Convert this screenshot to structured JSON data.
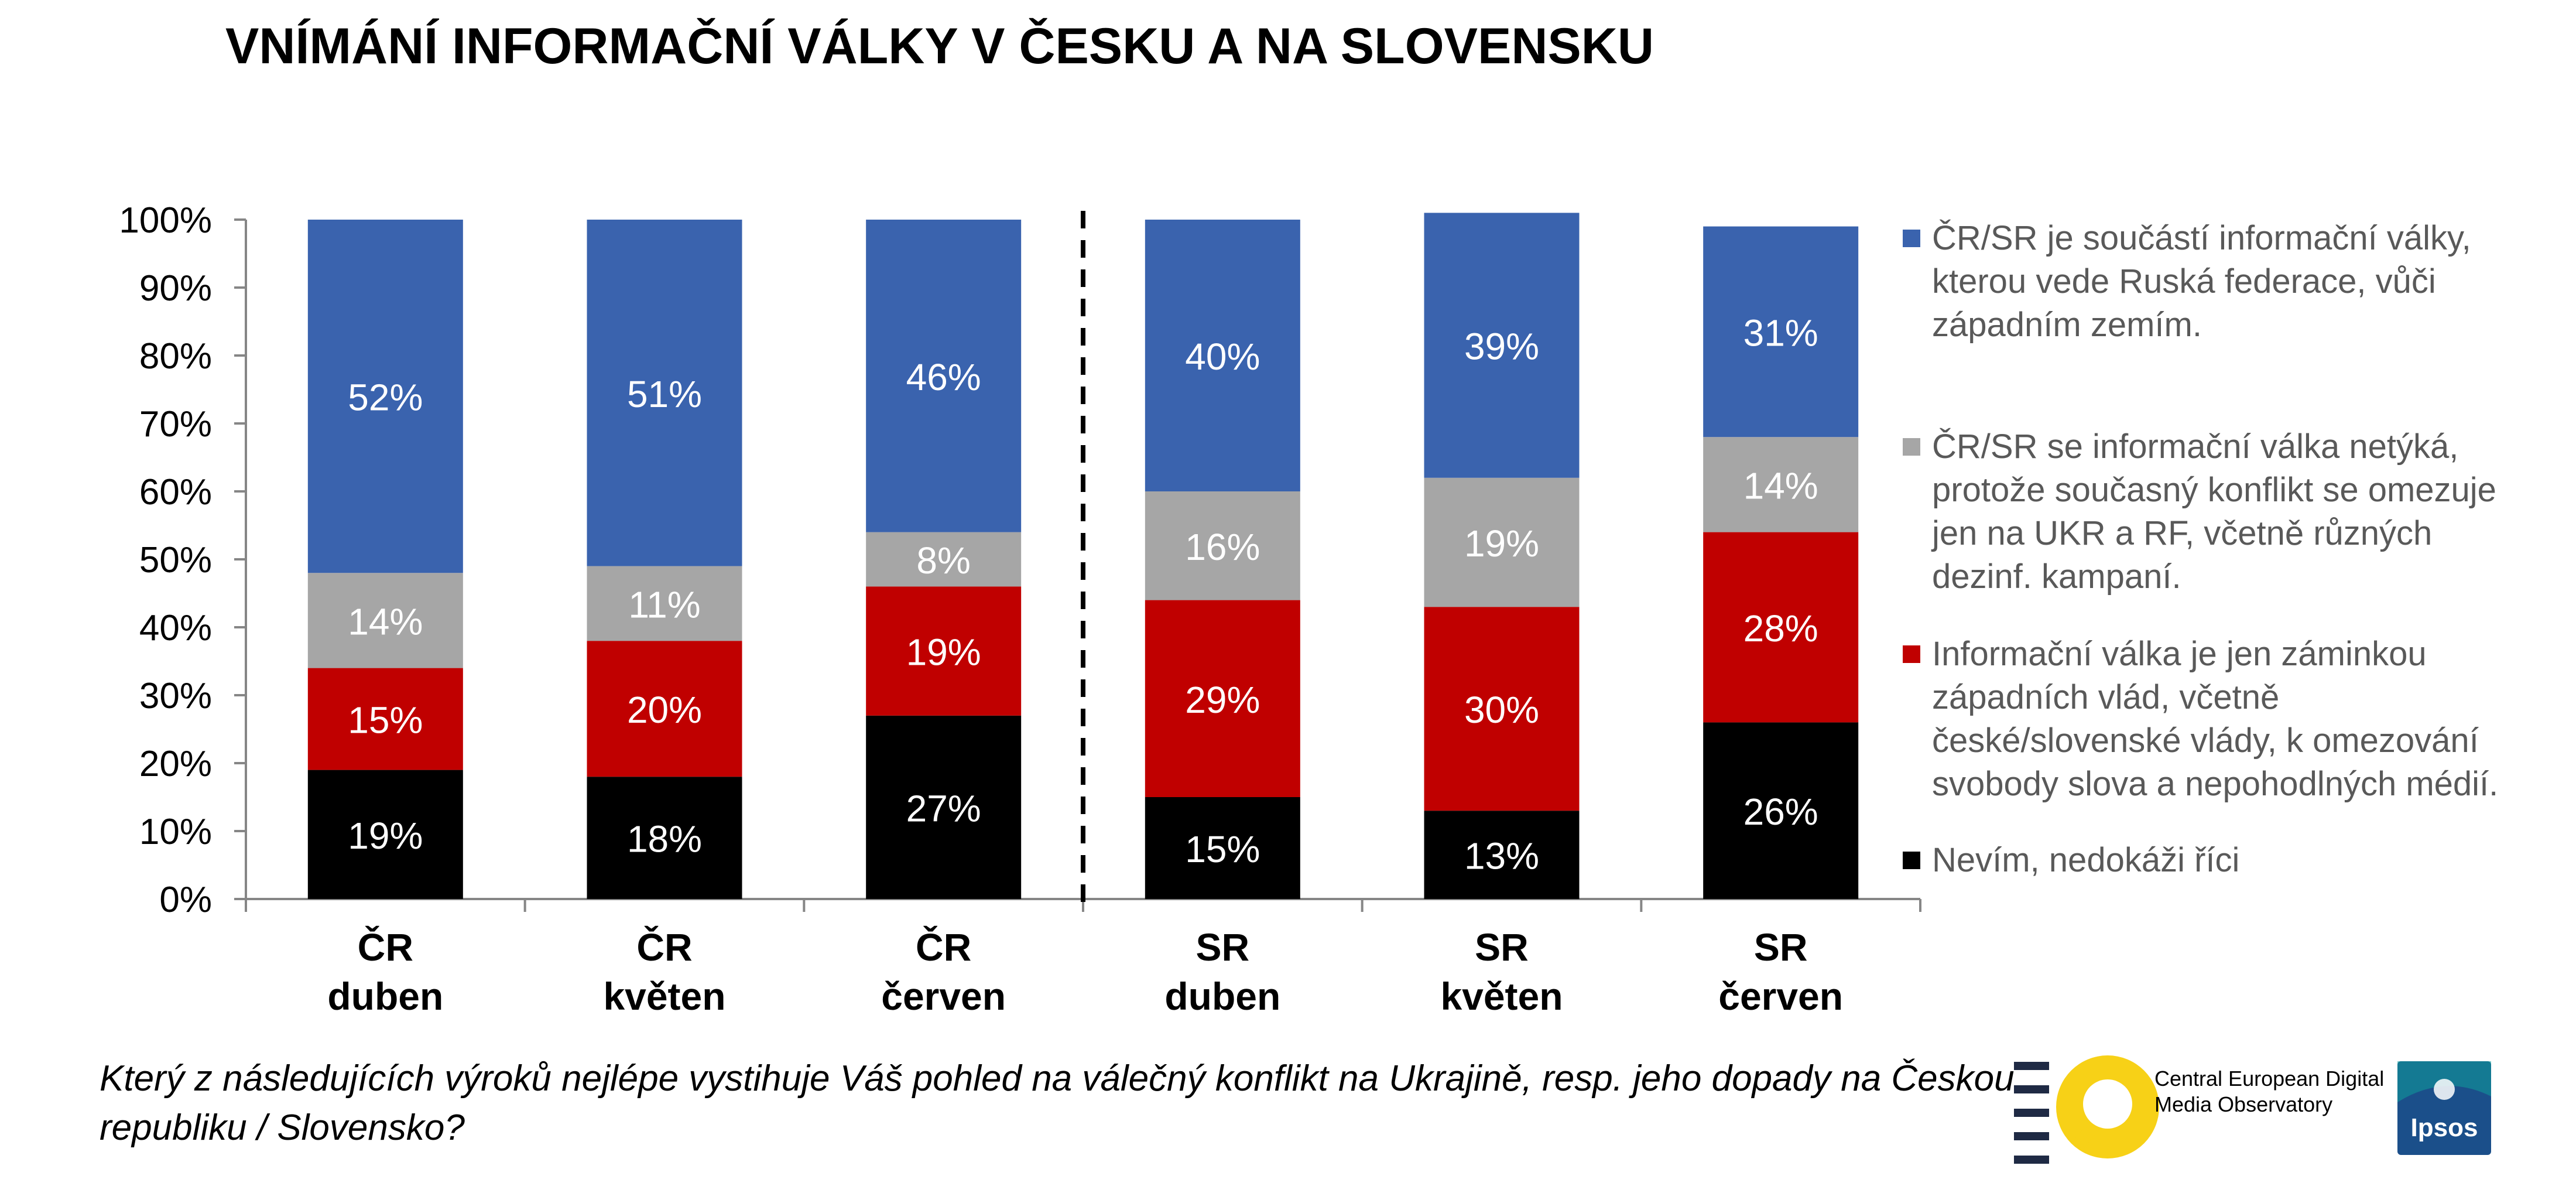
{
  "title": "VNÍMÁNÍ INFORMAČNÍ VÁLKY V ČESKU A NA SLOVENSKU",
  "question": "Který z následujících výroků nejlépe vystihuje Váš pohled na válečný konflikt na Ukrajině, resp. jeho dopady na Českou republiku / Slovensko?",
  "logos": {
    "cedmo": "Central European Digital Media Observatory",
    "ipsos": "Ipsos"
  },
  "colors": {
    "blue": "#3A63AE",
    "gray": "#A6A6A6",
    "red": "#C00000",
    "black": "#000000",
    "cedmo_yellow": "#F7D117",
    "cedmo_navy": "#1F2A44",
    "ipsos_teal": "#0E9E9B",
    "ipsos_blue": "#1B4F8A"
  },
  "chart_data": {
    "type": "bar",
    "stacked": true,
    "title": "VNÍMÁNÍ INFORMAČNÍ VÁLKY V ČESKU A NA SLOVENSKU",
    "categories": [
      "ČR\nduben",
      "ČR\nkvěten",
      "ČR\nčerven",
      "SR\nduben",
      "SR\nkvěten",
      "SR\nčerven"
    ],
    "ylim": [
      0,
      100
    ],
    "yticks": [
      "0%",
      "10%",
      "20%",
      "30%",
      "40%",
      "50%",
      "60%",
      "70%",
      "80%",
      "90%",
      "100%"
    ],
    "grid": false,
    "legend_position": "right",
    "separator_after_category": 2,
    "series": [
      {
        "name": "Nevím, nedokáži říci",
        "color": "#000000",
        "values": [
          19,
          18,
          27,
          15,
          13,
          26
        ]
      },
      {
        "name": "Informační válka je jen záminkou západních vlád, včetně české/slovenské vlády, k omezování svobody slova a nepohodlných médií.",
        "color": "#C00000",
        "values": [
          15,
          20,
          19,
          29,
          30,
          28
        ]
      },
      {
        "name": "ČR/SR se informační válka netýká, protože současný konflikt se omezuje jen na UKR a RF, včetně různých dezinf. kampaní.",
        "color": "#A6A6A6",
        "values": [
          14,
          11,
          8,
          16,
          19,
          14
        ]
      },
      {
        "name": "ČR/SR je součástí informační války, kterou vede Ruská federace, vůči západním zemím.",
        "color": "#3A63AE",
        "values": [
          52,
          51,
          46,
          40,
          39,
          31
        ]
      }
    ]
  }
}
